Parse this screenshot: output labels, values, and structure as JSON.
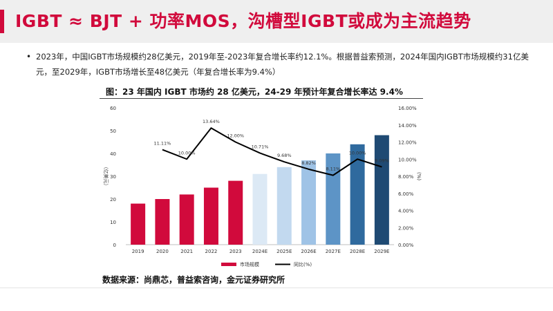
{
  "header": {
    "title": "IGBT ≈ BJT + 功率MOS，沟槽型IGBT或成为主流趋势"
  },
  "body": {
    "bullet_text": "2023年，中国IGBT市场规模约28亿美元，2019年至-2023年复合增长率约12.1%。根据普益索预测，2024年国内IGBT市场规模约31亿美元，至2029年，IGBT市场增长至48亿美元（年复合增长率为9.4%）"
  },
  "figure": {
    "title": "图：23 年国内 IGBT 市场约 28 亿美元，24-29 年预计年复合增长率达 9.4%",
    "source": "数据来源：尚鼎芯，普益索咨询，金元证券研究所"
  },
  "colors": {
    "title_red": "#d10a3c",
    "bar_actual": "#d10a3c",
    "bar_forecast": [
      "#dce9f5",
      "#c2d9ef",
      "#9fc3e6",
      "#5d94c6",
      "#2f6a9e",
      "#1f4a73",
      "#1c3f66"
    ],
    "line": "#000000"
  },
  "chart_data": {
    "type": "bar",
    "categories": [
      "2019",
      "2020",
      "2021",
      "2022",
      "2023",
      "2024E",
      "2025E",
      "2026E",
      "2027E",
      "2028E",
      "2029E"
    ],
    "series": [
      {
        "name": "市场规模",
        "type": "bar",
        "values": [
          18,
          20,
          22,
          25,
          28,
          31,
          34,
          37,
          40,
          44,
          48
        ]
      },
      {
        "name": "同比(%)",
        "type": "line",
        "axis": "right",
        "values": [
          null,
          11.11,
          10.0,
          13.64,
          12.0,
          10.71,
          9.68,
          8.82,
          8.11,
          10.0,
          9.09
        ],
        "labels": [
          "",
          "11.11%",
          "10.00%",
          "13.64%",
          "12.00%",
          "10.71%",
          "9.68%",
          "8.82%",
          "8.11%",
          "10.00%",
          "9.09%"
        ]
      }
    ],
    "ylabel": "（亿美元）",
    "ylabel_right": "(%)",
    "ylim": [
      0,
      60
    ],
    "yticks": [
      "0",
      "10",
      "20",
      "30",
      "40",
      "50",
      "60"
    ],
    "ylim_right": [
      0,
      16
    ],
    "yticks_right": [
      "0.00%",
      "2.00%",
      "4.00%",
      "6.00%",
      "8.00%",
      "10.00%",
      "12.00%",
      "14.00%",
      "16.00%"
    ],
    "grid": false,
    "legend_position": "bottom"
  }
}
